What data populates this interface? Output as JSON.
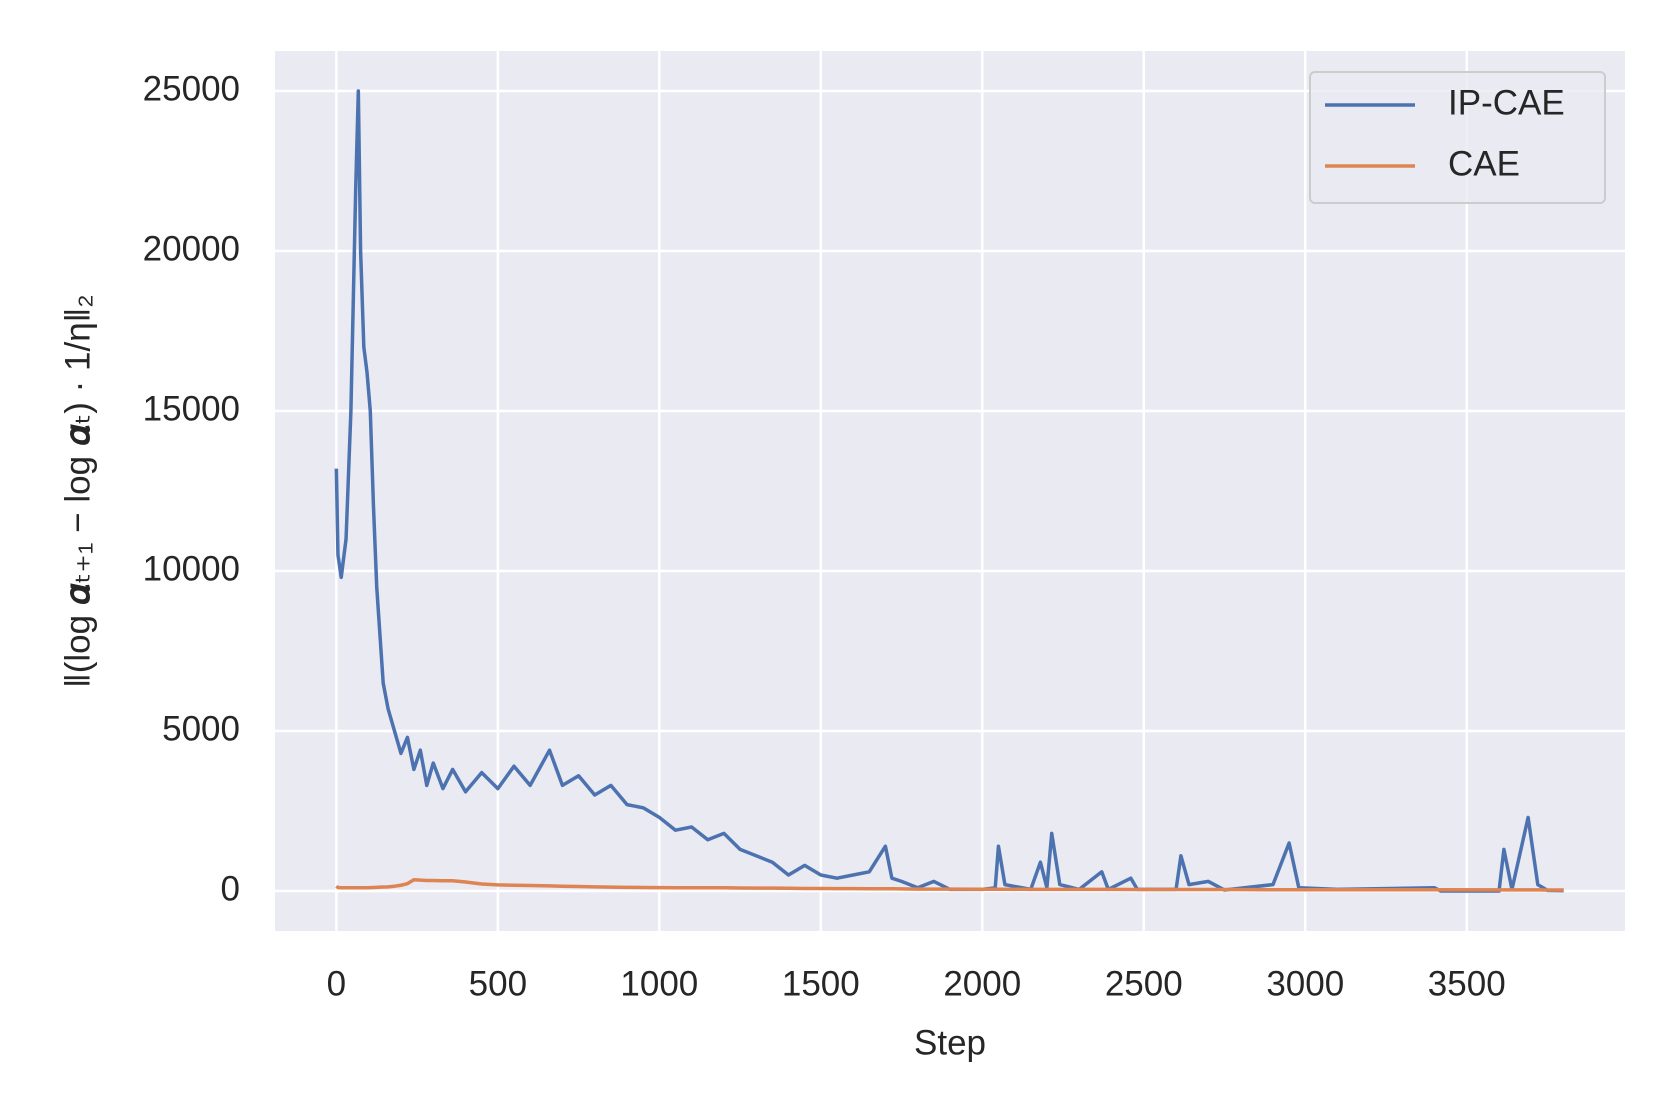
{
  "chart_data": {
    "type": "line",
    "xlabel": "Step",
    "ylabel": "‖(log 𝜶ₜ₊₁ − log 𝜶ₜ) · 1/η‖₂",
    "x": [
      0,
      5,
      15,
      30,
      45,
      60,
      68,
      75,
      85,
      95,
      105,
      115,
      125,
      135,
      145,
      160,
      180,
      200,
      220,
      240,
      260,
      280,
      300,
      330,
      360,
      400,
      450,
      500,
      550,
      600,
      660,
      700,
      750,
      800,
      850,
      900,
      950,
      1000,
      1050,
      1100,
      1150,
      1200,
      1250,
      1300,
      1350,
      1400,
      1450,
      1500,
      1550,
      1600,
      1650,
      1700,
      1720,
      1750,
      1800,
      1850,
      1900,
      2000,
      2040,
      2050,
      2070,
      2150,
      2180,
      2200,
      2215,
      2240,
      2300,
      2370,
      2390,
      2460,
      2480,
      2600,
      2615,
      2640,
      2700,
      2750,
      2900,
      2950,
      2980,
      3100,
      3400,
      3420,
      3600,
      3615,
      3640,
      3690,
      3720,
      3750,
      3800
    ],
    "series": [
      {
        "name": "IP-CAE",
        "color": "#4c72b0",
        "values": [
          13200,
          10500,
          9800,
          11000,
          15000,
          22000,
          25000,
          20000,
          17000,
          16200,
          15000,
          12000,
          9500,
          8000,
          6500,
          5700,
          5000,
          4300,
          4800,
          3800,
          4400,
          3300,
          4000,
          3200,
          3800,
          3100,
          3700,
          3200,
          3900,
          3300,
          4400,
          3300,
          3600,
          3000,
          3300,
          2700,
          2600,
          2300,
          1900,
          2000,
          1600,
          1800,
          1300,
          1100,
          900,
          500,
          800,
          500,
          400,
          500,
          600,
          1400,
          400,
          300,
          100,
          300,
          50,
          50,
          100,
          1400,
          200,
          50,
          900,
          100,
          1800,
          200,
          50,
          600,
          50,
          400,
          50,
          50,
          1100,
          200,
          300,
          30,
          200,
          1500,
          100,
          50,
          100,
          0,
          0,
          1300,
          50,
          2300,
          200,
          20,
          10
        ]
      },
      {
        "name": "CAE",
        "color": "#dd8452",
        "values": [
          150,
          110,
          100,
          100,
          100,
          100,
          100,
          100,
          100,
          100,
          105,
          110,
          115,
          120,
          125,
          130,
          150,
          180,
          230,
          350,
          340,
          330,
          330,
          320,
          320,
          280,
          220,
          190,
          180,
          170,
          160,
          150,
          140,
          130,
          120,
          115,
          110,
          105,
          100,
          100,
          100,
          100,
          95,
          90,
          90,
          85,
          80,
          80,
          75,
          75,
          70,
          70,
          70,
          65,
          60,
          60,
          60,
          55,
          55,
          55,
          55,
          50,
          50,
          50,
          50,
          50,
          50,
          50,
          50,
          45,
          45,
          45,
          45,
          45,
          45,
          45,
          40,
          40,
          40,
          40,
          40,
          40,
          35,
          35,
          35,
          35,
          35,
          30,
          30
        ]
      }
    ],
    "xlim": [
      -190,
      3990
    ],
    "ylim": [
      -1250,
      26250
    ],
    "xticks": [
      0,
      500,
      1000,
      1500,
      2000,
      2500,
      3000,
      3500
    ],
    "yticks": [
      0,
      5000,
      10000,
      15000,
      20000,
      25000
    ],
    "grid": true,
    "legend": "upper right"
  }
}
